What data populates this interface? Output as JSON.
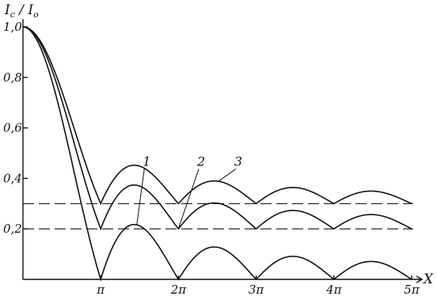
{
  "chart_data": {
    "type": "line",
    "ylabel": "Ic / Io",
    "xlabel": "X",
    "xlim": [
      0,
      15.708
    ],
    "ylim": [
      0,
      1.0
    ],
    "grid": false,
    "yticks": [
      {
        "value": 0.2,
        "label": "0,2"
      },
      {
        "value": 0.4,
        "label": "0,4"
      },
      {
        "value": 0.6,
        "label": "0,6"
      },
      {
        "value": 0.8,
        "label": "0,8"
      },
      {
        "value": 1.0,
        "label": "1,0"
      }
    ],
    "xticks": [
      {
        "value": 3.1416,
        "label": "π"
      },
      {
        "value": 6.2832,
        "label": "2π"
      },
      {
        "value": 9.4248,
        "label": "3π"
      },
      {
        "value": 12.5664,
        "label": "4π"
      },
      {
        "value": 15.708,
        "label": "5π"
      }
    ],
    "reference_lines": [
      {
        "y": 0.2,
        "style": "dashed"
      },
      {
        "y": 0.3,
        "style": "dashed"
      }
    ],
    "series": [
      {
        "name": "1",
        "floor": 0.0,
        "label_x": 5.0,
        "label_y": 0.45
      },
      {
        "name": "2",
        "floor": 0.2,
        "label_x": 7.2,
        "label_y": 0.45
      },
      {
        "name": "3",
        "floor": 0.3,
        "label_x": 8.7,
        "label_y": 0.45
      }
    ]
  }
}
